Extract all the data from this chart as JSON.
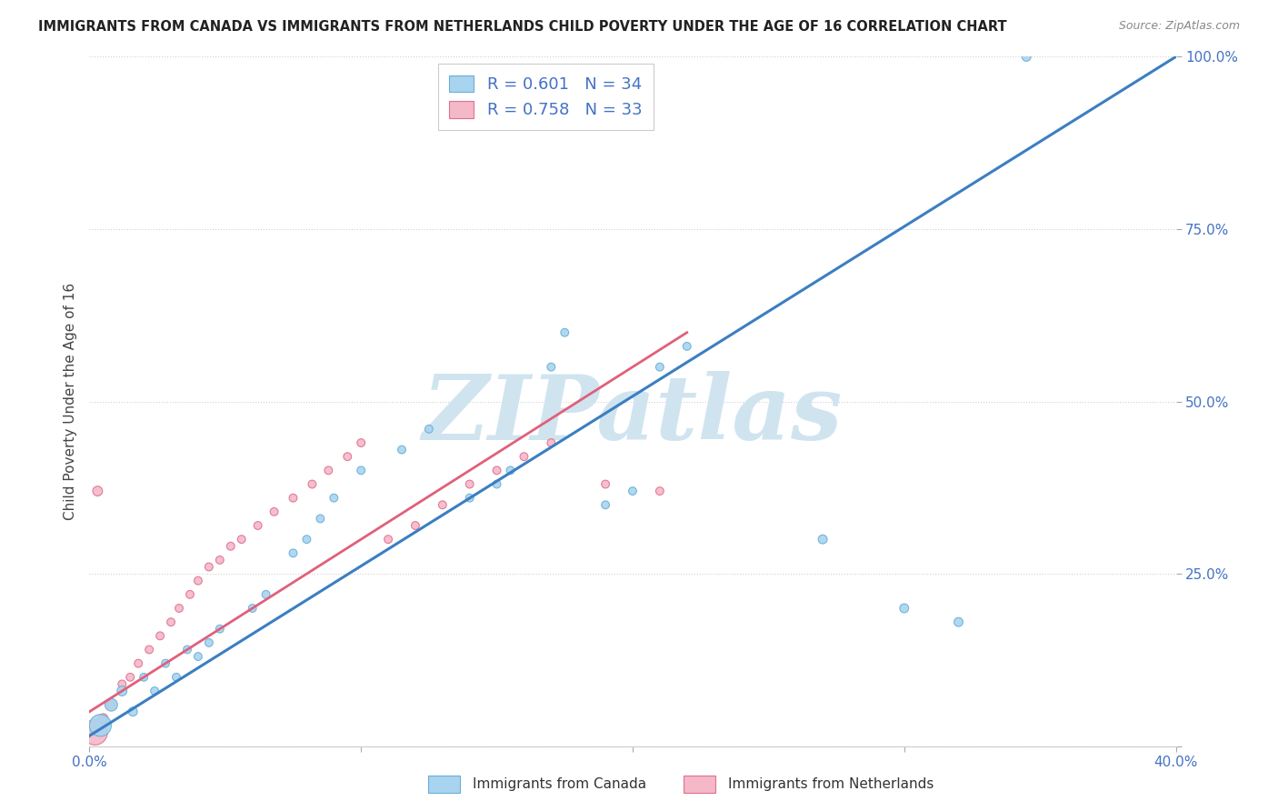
{
  "title": "IMMIGRANTS FROM CANADA VS IMMIGRANTS FROM NETHERLANDS CHILD POVERTY UNDER THE AGE OF 16 CORRELATION CHART",
  "source": "Source: ZipAtlas.com",
  "ylabel": "Child Poverty Under the Age of 16",
  "legend_label_blue": "Immigrants from Canada",
  "legend_label_pink": "Immigrants from Netherlands",
  "R_blue": 0.601,
  "N_blue": 34,
  "R_pink": 0.758,
  "N_pink": 33,
  "x_min": 0.0,
  "x_max": 0.4,
  "y_min": 0.0,
  "y_max": 1.0,
  "x_ticks": [
    0.0,
    0.1,
    0.2,
    0.3,
    0.4
  ],
  "x_tick_labels": [
    "0.0%",
    "",
    "",
    "",
    "40.0%"
  ],
  "y_ticks": [
    0.0,
    0.25,
    0.5,
    0.75,
    1.0
  ],
  "y_tick_labels": [
    "",
    "25.0%",
    "50.0%",
    "75.0%",
    "100.0%"
  ],
  "blue_color": "#a8d4f0",
  "blue_edge_color": "#6baed6",
  "pink_color": "#f4b8c8",
  "pink_edge_color": "#e07090",
  "blue_line_color": "#3a7fc1",
  "pink_line_color": "#e0607a",
  "watermark": "ZIPatlas",
  "watermark_color": "#d0e4f0",
  "background_color": "#ffffff",
  "blue_scatter_x": [
    0.004,
    0.008,
    0.012,
    0.016,
    0.02,
    0.024,
    0.028,
    0.032,
    0.036,
    0.04,
    0.044,
    0.048,
    0.06,
    0.065,
    0.075,
    0.08,
    0.085,
    0.09,
    0.1,
    0.115,
    0.125,
    0.14,
    0.15,
    0.155,
    0.17,
    0.175,
    0.19,
    0.2,
    0.21,
    0.22,
    0.27,
    0.3,
    0.32,
    0.345
  ],
  "blue_scatter_y": [
    0.03,
    0.06,
    0.08,
    0.05,
    0.1,
    0.08,
    0.12,
    0.1,
    0.14,
    0.13,
    0.15,
    0.17,
    0.2,
    0.22,
    0.28,
    0.3,
    0.33,
    0.36,
    0.4,
    0.43,
    0.46,
    0.36,
    0.38,
    0.4,
    0.55,
    0.6,
    0.35,
    0.37,
    0.55,
    0.58,
    0.3,
    0.2,
    0.18,
    1.0
  ],
  "blue_scatter_sizes": [
    300,
    100,
    60,
    50,
    40,
    40,
    40,
    40,
    40,
    40,
    40,
    40,
    40,
    40,
    40,
    40,
    40,
    40,
    40,
    40,
    40,
    40,
    40,
    40,
    40,
    40,
    40,
    40,
    40,
    40,
    50,
    50,
    50,
    50
  ],
  "pink_scatter_x": [
    0.002,
    0.005,
    0.008,
    0.012,
    0.015,
    0.018,
    0.022,
    0.026,
    0.03,
    0.033,
    0.037,
    0.04,
    0.044,
    0.048,
    0.052,
    0.056,
    0.062,
    0.068,
    0.075,
    0.082,
    0.088,
    0.095,
    0.1,
    0.11,
    0.12,
    0.13,
    0.14,
    0.15,
    0.16,
    0.17,
    0.19,
    0.21,
    0.003
  ],
  "pink_scatter_y": [
    0.02,
    0.04,
    0.06,
    0.09,
    0.1,
    0.12,
    0.14,
    0.16,
    0.18,
    0.2,
    0.22,
    0.24,
    0.26,
    0.27,
    0.29,
    0.3,
    0.32,
    0.34,
    0.36,
    0.38,
    0.4,
    0.42,
    0.44,
    0.3,
    0.32,
    0.35,
    0.38,
    0.4,
    0.42,
    0.44,
    0.38,
    0.37,
    0.37
  ],
  "pink_scatter_sizes": [
    400,
    60,
    50,
    40,
    40,
    40,
    40,
    40,
    40,
    40,
    40,
    40,
    40,
    40,
    40,
    40,
    40,
    40,
    40,
    40,
    40,
    40,
    40,
    40,
    40,
    40,
    40,
    40,
    40,
    40,
    40,
    40,
    60
  ],
  "blue_line_x0": 0.0,
  "blue_line_y0": 0.015,
  "blue_line_x1": 0.4,
  "blue_line_y1": 1.0,
  "pink_line_x0": 0.0,
  "pink_line_y0": 0.05,
  "pink_line_x1": 0.22,
  "pink_line_y1": 0.6
}
